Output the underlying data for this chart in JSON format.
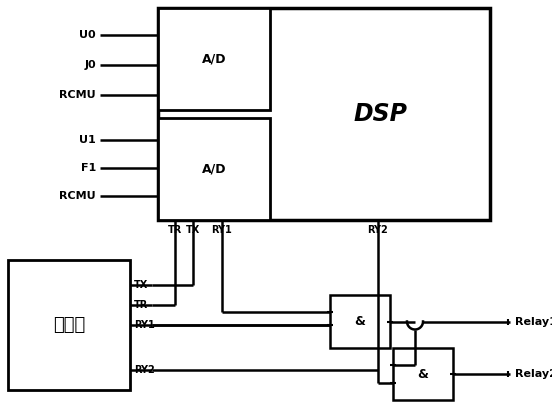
{
  "bg_color": "#ffffff",
  "line_color": "#000000",
  "lw": 1.8,
  "dsp_label": "DSP",
  "ad1_label": "A/D",
  "ad2_label": "A/D",
  "watchdog_label": "看门狗",
  "and1_label": "&",
  "and2_label": "&",
  "input_labels_top": [
    "U0",
    "J0",
    "RCMU"
  ],
  "input_labels_mid": [
    "U1",
    "F1",
    "RCMU"
  ],
  "relay1_label": "Relay1",
  "relay2_label": "Relay2"
}
